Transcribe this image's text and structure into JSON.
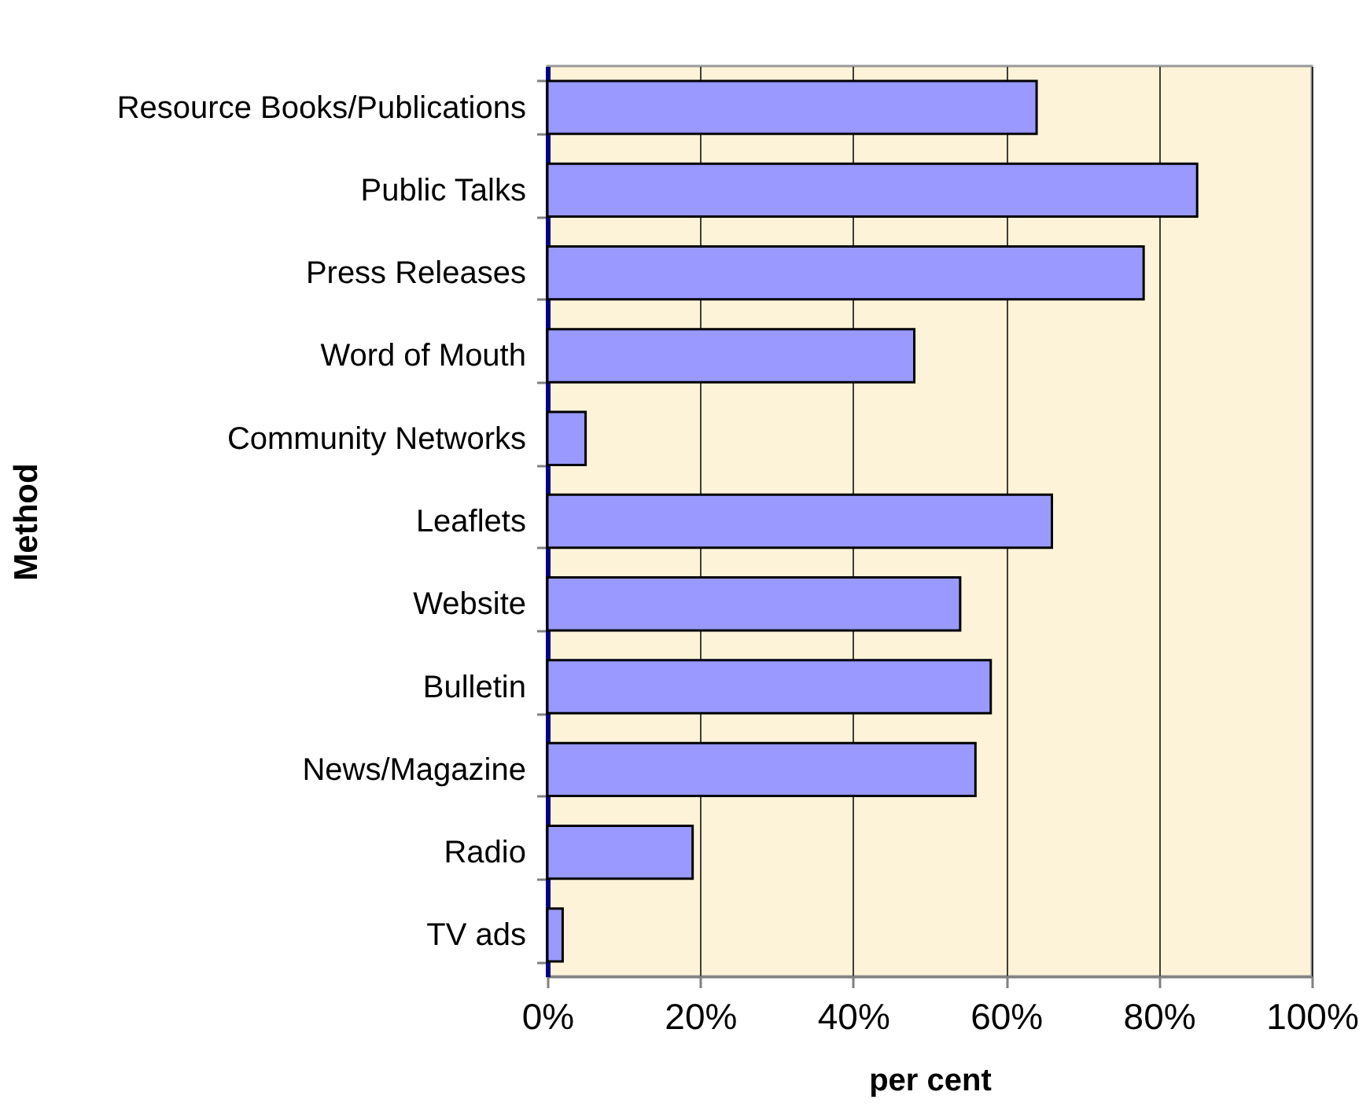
{
  "chart_data": {
    "type": "bar",
    "orientation": "horizontal",
    "xlabel": "per cent",
    "ylabel": "Method",
    "categories": [
      "Resource Books/Publications",
      "Public Talks",
      "Press Releases",
      "Word of Mouth",
      "Community Networks",
      "Leaflets",
      "Website",
      "Bulletin",
      "News/Magazine",
      "Radio",
      "TV ads"
    ],
    "values": [
      64,
      85,
      78,
      48,
      5,
      66,
      54,
      58,
      56,
      19,
      2
    ],
    "color": "#9999ff",
    "xlim": [
      0,
      100
    ],
    "xticks": [
      {
        "value": 0,
        "label": "0%"
      },
      {
        "value": 20,
        "label": "20%"
      },
      {
        "value": 40,
        "label": "40%"
      },
      {
        "value": 60,
        "label": "60%"
      },
      {
        "value": 80,
        "label": "80%"
      },
      {
        "value": 100,
        "label": "100%"
      }
    ],
    "grid": "x"
  }
}
